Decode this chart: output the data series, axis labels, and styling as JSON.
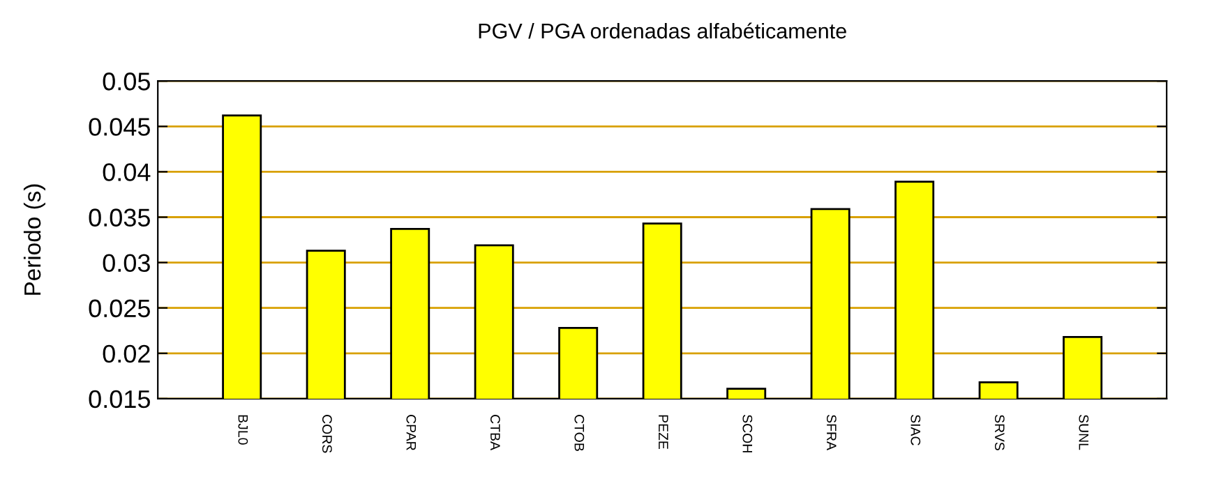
{
  "chart_data": {
    "type": "bar",
    "title": "PGV / PGA ordenadas alfabéticamente",
    "ylabel": "Periodo (s)",
    "categories": [
      "BJL0",
      "CORS",
      "CPAR",
      "CTBA",
      "CTOB",
      "PEZE",
      "SCOH",
      "SFRA",
      "SIAC",
      "SRVS",
      "SUNL"
    ],
    "values": [
      0.0462,
      0.0313,
      0.0337,
      0.0319,
      0.0228,
      0.0343,
      0.0161,
      0.0359,
      0.0389,
      0.0168,
      0.0218
    ],
    "color": "#ffff00",
    "ylim": [
      0.015,
      0.05
    ],
    "yticks": [
      0.015,
      0.02,
      0.025,
      0.03,
      0.035,
      0.04,
      0.045,
      0.05
    ],
    "grid": "y"
  }
}
